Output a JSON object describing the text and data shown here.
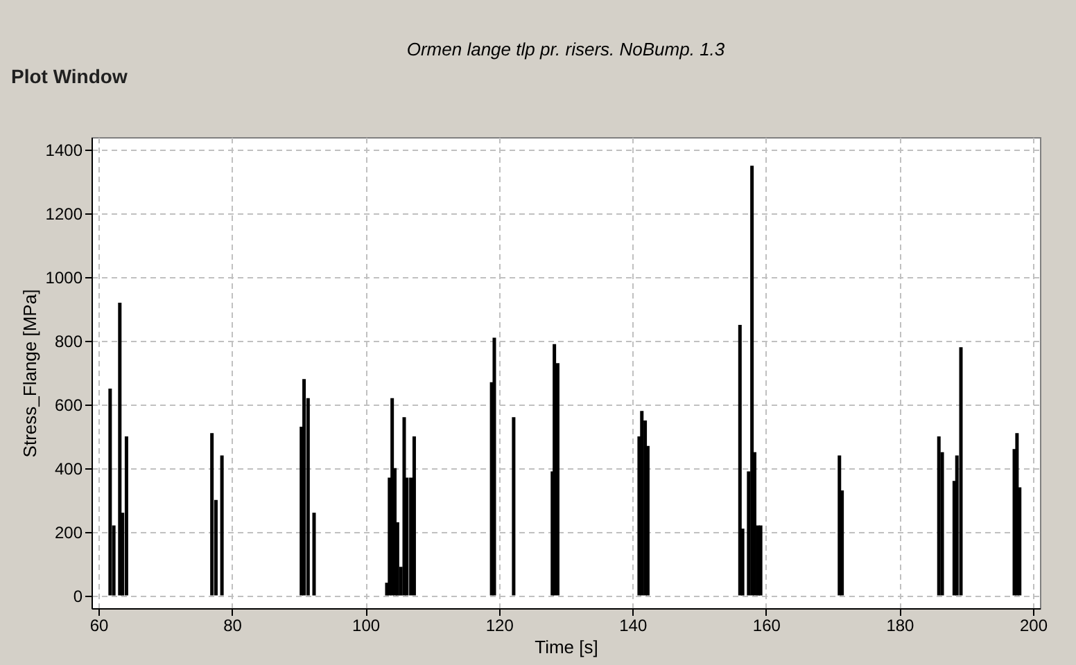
{
  "chart_data": {
    "type": "bar",
    "title": "Ormen lange tlp pr. risers. NoBump. 1.3",
    "xlabel": "Time [s]",
    "ylabel": "Stress_Flange [MPa]",
    "annotations": [
      "Plot Window"
    ],
    "x": [
      61.75,
      62.3,
      63.2,
      63.6,
      64.2,
      77.0,
      77.6,
      78.5,
      90.4,
      90.8,
      91.4,
      92.3,
      103.2,
      103.6,
      104.0,
      104.4,
      104.8,
      105.3,
      105.8,
      106.2,
      106.8,
      107.3,
      118.9,
      119.3,
      122.2,
      128.0,
      128.3,
      128.8,
      141.0,
      141.4,
      141.9,
      142.3,
      156.1,
      156.5,
      157.4,
      157.9,
      158.3,
      158.8,
      159.2,
      171.0,
      171.4,
      185.9,
      186.4,
      188.2,
      188.6,
      189.2,
      197.2,
      197.6,
      198.0
    ],
    "series": [
      {
        "color": "#000000",
        "values": [
          650,
          220,
          920,
          260,
          500,
          510,
          300,
          440,
          530,
          680,
          620,
          260,
          40,
          370,
          620,
          400,
          230,
          90,
          560,
          370,
          370,
          500,
          670,
          810,
          560,
          390,
          790,
          730,
          500,
          580,
          550,
          470,
          850,
          210,
          390,
          1350,
          450,
          220,
          220,
          440,
          330,
          500,
          450,
          360,
          440,
          780,
          460,
          510,
          340
        ]
      }
    ],
    "xlim": [
      60,
      200
    ],
    "xticks": [
      60,
      80,
      100,
      120,
      140,
      160,
      180,
      200
    ],
    "ylim": [
      -40,
      1440
    ],
    "yticks": [
      0,
      200,
      400,
      600,
      800,
      1000,
      1200,
      1400
    ],
    "grid": true
  }
}
